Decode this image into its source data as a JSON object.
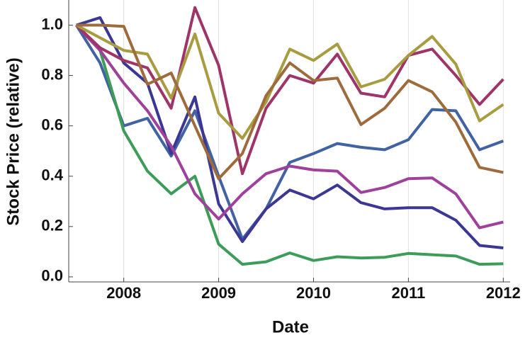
{
  "chart_data": {
    "type": "line",
    "xlabel": "Date",
    "ylabel": "Stock Price (relative)",
    "x": [
      2007.5,
      2007.75,
      2008,
      2008.25,
      2008.5,
      2008.75,
      2009,
      2009.25,
      2009.5,
      2009.75,
      2010,
      2010.25,
      2010.5,
      2010.75,
      2011,
      2011.25,
      2011.5,
      2011.75,
      2012
    ],
    "xlim": [
      2007.42,
      2012.05
    ],
    "xticks": [
      2008,
      2009,
      2010,
      2011,
      2012
    ],
    "ylim": [
      -0.02,
      1.1
    ],
    "yticks": [
      {
        "value": 0,
        "label": "0.0"
      },
      {
        "value": 0.2,
        "label": "0.2"
      },
      {
        "value": 0.4,
        "label": "0.4"
      },
      {
        "value": 0.6,
        "label": "0.6"
      },
      {
        "value": 0.8,
        "label": "0.8"
      },
      {
        "value": 1,
        "label": "1.0"
      }
    ],
    "grid": true,
    "series": [
      {
        "color": "#4162a3",
        "values": [
          1.0,
          0.85,
          0.6,
          0.63,
          0.48,
          0.66,
          0.4,
          0.15,
          0.27,
          0.455,
          0.49,
          0.53,
          0.515,
          0.505,
          0.545,
          0.665,
          0.66,
          0.505,
          0.54
        ]
      },
      {
        "color": "#3c3794",
        "values": [
          1.0,
          1.03,
          0.85,
          0.77,
          0.49,
          0.715,
          0.29,
          0.14,
          0.27,
          0.345,
          0.31,
          0.365,
          0.295,
          0.27,
          0.275,
          0.275,
          0.225,
          0.125,
          0.115
        ]
      },
      {
        "color": "#3c9c58",
        "values": [
          1.0,
          0.9,
          0.58,
          0.42,
          0.33,
          0.4,
          0.13,
          0.05,
          0.06,
          0.095,
          0.065,
          0.08,
          0.075,
          0.078,
          0.093,
          0.088,
          0.083,
          0.05,
          0.052
        ]
      },
      {
        "color": "#9e409c",
        "values": [
          1.0,
          0.9,
          0.77,
          0.66,
          0.52,
          0.33,
          0.23,
          0.33,
          0.41,
          0.44,
          0.425,
          0.42,
          0.335,
          0.355,
          0.39,
          0.393,
          0.33,
          0.195,
          0.218
        ]
      },
      {
        "color": "#9e3468",
        "values": [
          1.0,
          0.91,
          0.86,
          0.83,
          0.67,
          1.07,
          0.84,
          0.41,
          0.67,
          0.8,
          0.77,
          0.885,
          0.73,
          0.715,
          0.88,
          0.905,
          0.8,
          0.685,
          0.785
        ]
      },
      {
        "color": "#a89c40",
        "values": [
          1.0,
          0.95,
          0.9,
          0.885,
          0.71,
          0.965,
          0.65,
          0.55,
          0.695,
          0.905,
          0.86,
          0.925,
          0.755,
          0.785,
          0.88,
          0.955,
          0.845,
          0.62,
          0.685
        ]
      },
      {
        "color": "#9e6c3c",
        "values": [
          1.0,
          1.0,
          0.995,
          0.765,
          0.81,
          0.6,
          0.39,
          0.49,
          0.72,
          0.85,
          0.78,
          0.79,
          0.605,
          0.67,
          0.78,
          0.735,
          0.615,
          0.435,
          0.415
        ]
      }
    ]
  }
}
